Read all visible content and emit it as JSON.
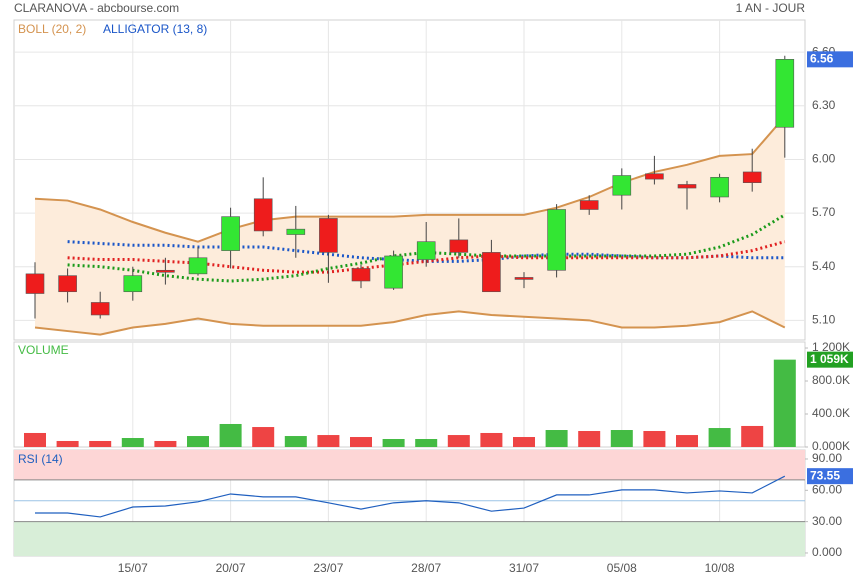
{
  "header": {
    "title": "CLARANOVA - abcbourse.com",
    "period": "1 AN - JOUR"
  },
  "chart_data": [
    {
      "type": "candlestick",
      "categories": [
        null,
        null,
        null,
        "15/07",
        null,
        null,
        "20/07",
        null,
        null,
        "23/07",
        null,
        null,
        "28/07",
        null,
        null,
        "31/07",
        null,
        null,
        "05/08",
        null,
        null,
        "10/08",
        null,
        null
      ],
      "open": [
        5.36,
        5.35,
        5.2,
        5.26,
        5.38,
        5.36,
        5.49,
        5.78,
        5.58,
        5.67,
        5.39,
        5.28,
        5.44,
        5.55,
        5.48,
        5.34,
        5.38,
        5.77,
        5.8,
        5.92,
        5.86,
        5.79,
        5.93,
        6.18
      ],
      "high": [
        5.425,
        5.39,
        5.26,
        5.4,
        5.45,
        5.51,
        5.73,
        5.9,
        5.74,
        5.69,
        5.41,
        5.49,
        5.65,
        5.67,
        5.55,
        5.37,
        5.75,
        5.8,
        5.95,
        6.02,
        5.88,
        5.92,
        6.06,
        6.58
      ],
      "low": [
        5.11,
        5.2,
        5.11,
        5.21,
        5.3,
        5.35,
        5.39,
        5.57,
        5.45,
        5.31,
        5.28,
        5.27,
        5.4,
        5.45,
        5.26,
        5.28,
        5.34,
        5.69,
        5.72,
        5.86,
        5.72,
        5.76,
        5.82,
        6.01
      ],
      "close": [
        5.25,
        5.26,
        5.13,
        5.35,
        5.37,
        5.45,
        5.68,
        5.6,
        5.61,
        5.48,
        5.32,
        5.46,
        5.54,
        5.48,
        5.26,
        5.335,
        5.72,
        5.72,
        5.91,
        5.89,
        5.84,
        5.9,
        5.87,
        6.56
      ],
      "up_color": "#33e633",
      "down_color": "#ee1c1c",
      "ylim": [
        4.99,
        6.78
      ],
      "yticks": [
        {
          "value": 5.1,
          "label": "5.10"
        },
        {
          "value": 5.4,
          "label": "5.40"
        },
        {
          "value": 5.7,
          "label": "5.70"
        },
        {
          "value": 6.0,
          "label": "6.00"
        },
        {
          "value": 6.3,
          "label": "6.30"
        },
        {
          "value": 6.6,
          "label": "6.60"
        }
      ],
      "grid": true,
      "badge_color": "#3b6fe0",
      "indicators": [
        {
          "name": "BOLL (20, 2)",
          "color": "#d4934f",
          "fill": "#fdecdb",
          "upper": [
            5.78,
            5.77,
            5.72,
            5.65,
            5.59,
            5.54,
            5.61,
            5.66,
            5.68,
            5.68,
            5.68,
            5.68,
            5.69,
            5.69,
            5.69,
            5.69,
            5.73,
            5.79,
            5.87,
            5.93,
            5.97,
            6.02,
            6.03,
            6.24
          ],
          "lower": [
            5.06,
            5.04,
            5.02,
            5.06,
            5.08,
            5.11,
            5.08,
            5.07,
            5.07,
            5.07,
            5.07,
            5.09,
            5.13,
            5.15,
            5.13,
            5.12,
            5.11,
            5.1,
            5.06,
            5.06,
            5.07,
            5.09,
            5.15,
            5.06
          ]
        },
        {
          "name": "ALLIGATOR (13, 8)",
          "color": "#1a56c8",
          "series": [
            {
              "color": "#1a56c8",
              "values": [
                null,
                5.54,
                5.53,
                5.52,
                5.52,
                5.51,
                5.51,
                5.51,
                5.49,
                5.47,
                5.45,
                5.44,
                5.43,
                5.43,
                5.44,
                5.46,
                5.47,
                5.47,
                5.46,
                5.45,
                5.45,
                5.46,
                5.45,
                5.45
              ]
            },
            {
              "color": "#e02020",
              "values": [
                null,
                5.45,
                5.44,
                5.44,
                5.43,
                5.42,
                5.4,
                5.38,
                5.37,
                5.37,
                5.39,
                5.41,
                5.43,
                5.45,
                5.46,
                5.45,
                5.45,
                5.45,
                5.45,
                5.45,
                5.45,
                5.46,
                5.49,
                5.54
              ]
            },
            {
              "color": "#1a9a1a",
              "values": [
                null,
                5.41,
                5.4,
                5.38,
                5.35,
                5.33,
                5.32,
                5.33,
                5.35,
                5.39,
                5.42,
                5.46,
                5.48,
                5.47,
                5.46,
                5.46,
                5.46,
                5.46,
                5.46,
                5.46,
                5.47,
                5.51,
                5.58,
                5.69
              ]
            }
          ]
        }
      ]
    },
    {
      "type": "bar",
      "title": "VOLUME",
      "values": [
        170,
        73,
        73,
        109,
        73,
        133,
        279,
        242,
        133,
        145,
        121,
        97,
        97,
        145,
        170,
        121,
        206,
        194,
        206,
        194,
        145,
        230,
        255,
        1059
      ],
      "last_label": "1 059K",
      "up_color": "#44bb44",
      "down_color": "#ee4444",
      "badge_color": "#22a022",
      "ylim": [
        0,
        1273
      ],
      "yticks": [
        {
          "value": 0,
          "label": "0.000K"
        },
        {
          "value": 400,
          "label": "400.0K"
        },
        {
          "value": 800,
          "label": "800.0K"
        },
        {
          "value": 1200,
          "label": "1 200K"
        }
      ]
    },
    {
      "type": "line",
      "title": "RSI (14)",
      "color": "#1f5fbf",
      "badge_color": "#3b6fe0",
      "values": [
        38.3,
        38.3,
        34.5,
        44,
        45,
        49,
        56.5,
        53.7,
        53.7,
        48,
        42,
        48,
        50,
        48,
        40,
        43,
        55.6,
        55.6,
        60.4,
        60.4,
        57.5,
        59.4,
        57.5,
        73.55
      ],
      "ylim": [
        -2.9,
        98.6
      ],
      "yticks": [
        {
          "value": 0,
          "label": "0.000"
        },
        {
          "value": 30,
          "label": "30.00"
        },
        {
          "value": 60,
          "label": "60.00"
        },
        {
          "value": 90,
          "label": "90.00"
        }
      ],
      "overbought": 70,
      "oversold": 30,
      "midline": 50,
      "overbought_color": "#fdd6d6",
      "oversold_color": "#d8eed8"
    }
  ]
}
